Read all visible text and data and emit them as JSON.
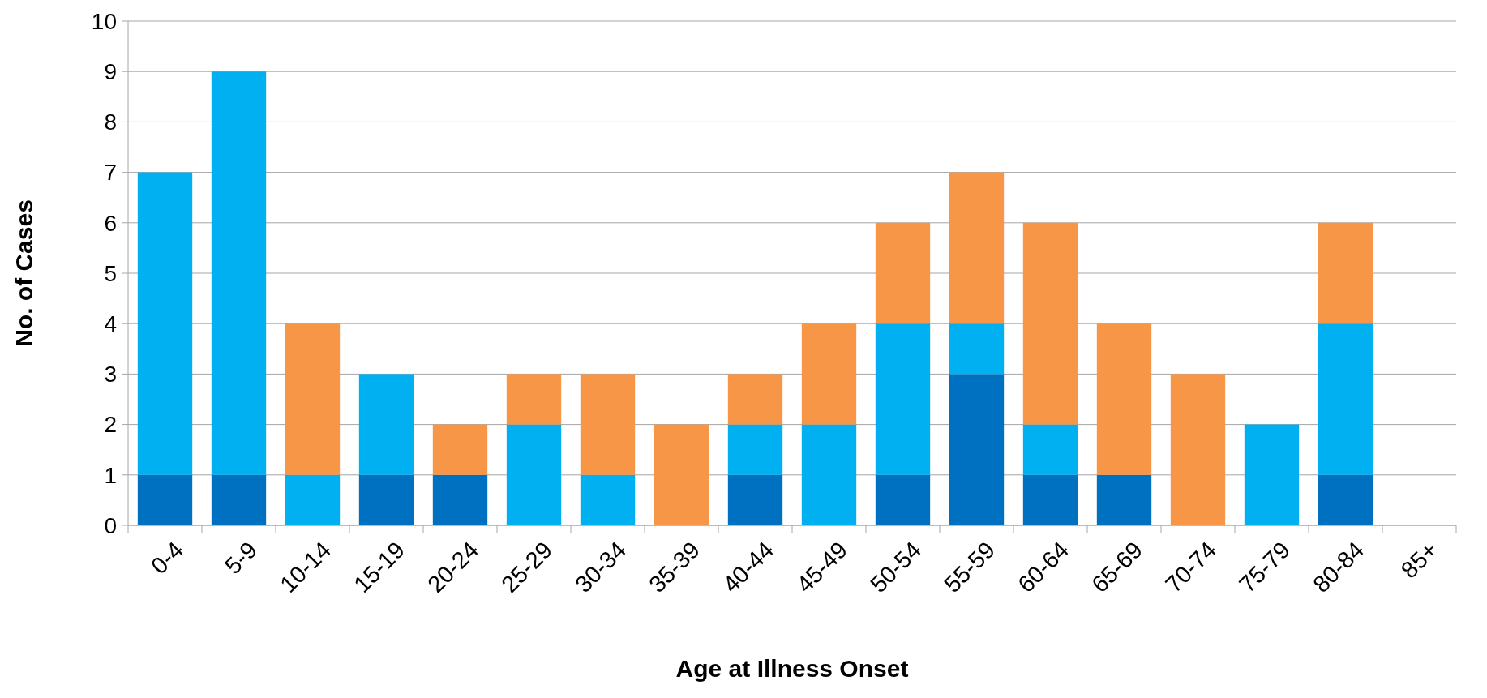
{
  "chart_data": {
    "type": "bar",
    "stacked": true,
    "xlabel": "Age at Illness Onset",
    "ylabel": "No. of Cases",
    "categories": [
      "0-4",
      "5-9",
      "10-14",
      "15-19",
      "20-24",
      "25-29",
      "30-34",
      "35-39",
      "40-44",
      "45-49",
      "50-54",
      "55-59",
      "60-64",
      "65-69",
      "70-74",
      "75-79",
      "80-84",
      "85+"
    ],
    "series": [
      {
        "color": "#0070c0",
        "values": [
          1,
          1,
          0,
          1,
          1,
          0,
          0,
          0,
          1,
          0,
          1,
          3,
          1,
          1,
          0,
          0,
          1,
          0
        ]
      },
      {
        "color": "#00b0f0",
        "values": [
          6,
          8,
          1,
          2,
          0,
          2,
          1,
          0,
          1,
          2,
          3,
          1,
          1,
          0,
          0,
          2,
          3,
          0
        ]
      },
      {
        "color": "#f79646",
        "values": [
          0,
          0,
          3,
          0,
          1,
          1,
          2,
          2,
          1,
          2,
          2,
          3,
          4,
          3,
          3,
          0,
          2,
          0
        ]
      }
    ],
    "ylim": [
      0,
      10
    ],
    "yticks": [
      0,
      1,
      2,
      3,
      4,
      5,
      6,
      7,
      8,
      9,
      10
    ],
    "grid": "y"
  }
}
